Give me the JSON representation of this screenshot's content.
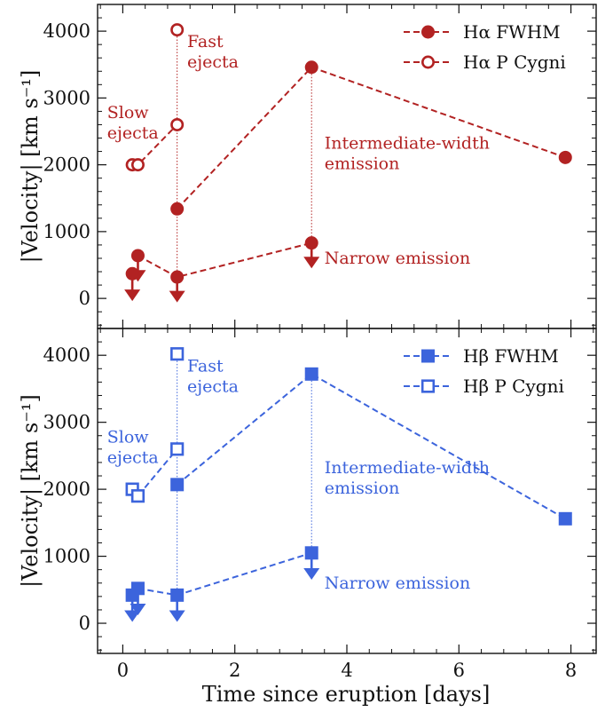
{
  "chart_data": {
    "type": "scatter",
    "xlabel": "Time since eruption [days]",
    "xlim": [
      -0.45,
      8.45
    ],
    "xticks": [
      0,
      2,
      4,
      6,
      8
    ],
    "panels": [
      {
        "id": "halpha",
        "ylabel": "|Velocity| [km s⁻¹]",
        "ylim": [
          -450,
          4400
        ],
        "yticks": [
          0,
          1000,
          2000,
          3000,
          4000
        ],
        "color": "#b22222",
        "marker": "circle",
        "legend": {
          "position": "top-right",
          "entries": [
            "Hα FWHM",
            "Hα P Cygni"
          ]
        },
        "series": [
          {
            "name": "Hα FWHM",
            "style": "filled-dashed",
            "x": [
              0.97,
              3.37,
              7.9
            ],
            "y": [
              1340,
              3460,
              2110
            ]
          },
          {
            "name": "Hα P Cygni",
            "style": "open-dashed",
            "x": [
              0.17,
              0.27,
              0.97
            ],
            "y": [
              2000,
              2000,
              2600
            ]
          },
          {
            "name": "",
            "style": "filled-dashed",
            "x": [
              0.27,
              0.97,
              3.37
            ],
            "y": [
              640,
              320,
              830
            ]
          }
        ],
        "upper_limits": [
          {
            "x": 0.17,
            "y": 370,
            "to": 0
          },
          {
            "x": 0.27,
            "y": 640,
            "to": 290
          },
          {
            "x": 0.97,
            "y": 320,
            "to": -20
          },
          {
            "x": 3.37,
            "y": 830,
            "to": 490
          }
        ],
        "single_points": [
          {
            "x": 0.17,
            "y": 370,
            "fill": true
          },
          {
            "x": 0.97,
            "y": 4020,
            "fill": false
          }
        ],
        "vlines": [
          {
            "x": 0.97,
            "y0": 320,
            "y1": 4020
          },
          {
            "x": 3.37,
            "y0": 830,
            "y1": 3460
          }
        ],
        "annotations": [
          {
            "lines": [
              "Fast",
              "ejecta"
            ],
            "x": 1.15,
            "y": 3760
          },
          {
            "lines": [
              "Slow",
              "ejecta"
            ],
            "x": -0.28,
            "y": 2700
          },
          {
            "lines": [
              "Intermediate-width",
              "emission"
            ],
            "x": 3.6,
            "y": 2240
          },
          {
            "lines": [
              "Narrow emission"
            ],
            "x": 3.6,
            "y": 520
          }
        ]
      },
      {
        "id": "hbeta",
        "ylabel": "|Velocity| [km s⁻¹]",
        "ylim": [
          -450,
          4400
        ],
        "yticks": [
          0,
          1000,
          2000,
          3000,
          4000
        ],
        "color": "#3c64dc",
        "marker": "square",
        "legend": {
          "position": "top-right",
          "entries": [
            "Hβ FWHM",
            "Hβ P Cygni"
          ]
        },
        "series": [
          {
            "name": "Hβ FWHM",
            "style": "filled-dashed",
            "x": [
              0.97,
              3.37,
              7.9
            ],
            "y": [
              2070,
              3720,
              1560
            ]
          },
          {
            "name": "Hβ P Cygni",
            "style": "open-dashed",
            "x": [
              0.17,
              0.27,
              0.97
            ],
            "y": [
              2000,
              1900,
              2600
            ]
          },
          {
            "name": "",
            "style": "filled-dashed",
            "x": [
              0.27,
              0.97,
              3.37
            ],
            "y": [
              520,
              420,
              1050
            ]
          }
        ],
        "upper_limits": [
          {
            "x": 0.17,
            "y": 420,
            "to": 60
          },
          {
            "x": 0.27,
            "y": 520,
            "to": 160
          },
          {
            "x": 0.97,
            "y": 420,
            "to": 60
          },
          {
            "x": 3.37,
            "y": 1050,
            "to": 690
          }
        ],
        "single_points": [
          {
            "x": 0.17,
            "y": 420,
            "fill": true
          },
          {
            "x": 0.97,
            "y": 4020,
            "fill": false
          }
        ],
        "vlines": [
          {
            "x": 0.97,
            "y0": 420,
            "y1": 4020
          },
          {
            "x": 3.37,
            "y0": 1050,
            "y1": 3720
          }
        ],
        "annotations": [
          {
            "lines": [
              "Fast",
              "ejecta"
            ],
            "x": 1.15,
            "y": 3760
          },
          {
            "lines": [
              "Slow",
              "ejecta"
            ],
            "x": -0.28,
            "y": 2700
          },
          {
            "lines": [
              "Intermediate-width",
              "emission"
            ],
            "x": 3.6,
            "y": 2240
          },
          {
            "lines": [
              "Narrow emission"
            ],
            "x": 3.6,
            "y": 520
          }
        ]
      }
    ]
  }
}
